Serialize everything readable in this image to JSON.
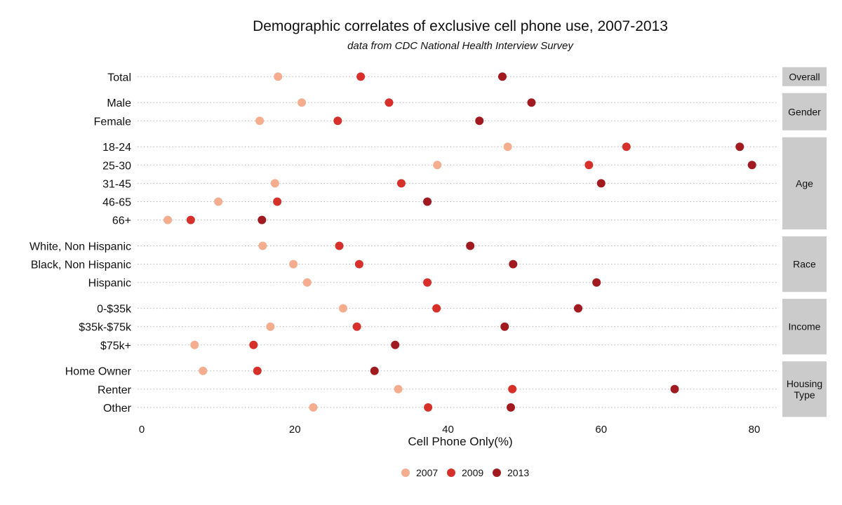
{
  "chart_data": {
    "type": "scatter",
    "title": "Demographic correlates of exclusive cell phone use, 2007-2013",
    "subtitle": "data from CDC National Health Interview Survey",
    "xlabel": "Cell Phone Only(%)",
    "xlim": [
      0,
      80
    ],
    "xticks": [
      0,
      20,
      40,
      60,
      80
    ],
    "grid": true,
    "legend_position": "bottom",
    "series": [
      {
        "name": "2007",
        "color": "#f4ad8f"
      },
      {
        "name": "2009",
        "color": "#d7302b"
      },
      {
        "name": "2013",
        "color": "#a11a20"
      }
    ],
    "groups": [
      {
        "label": "Overall",
        "rows": [
          {
            "label": "Total",
            "values": [
              17.8,
              28.6,
              47.1
            ]
          }
        ]
      },
      {
        "label": "Gender",
        "rows": [
          {
            "label": "Male",
            "values": [
              20.9,
              32.3,
              50.9
            ]
          },
          {
            "label": "Female",
            "values": [
              15.4,
              25.6,
              44.1
            ]
          }
        ]
      },
      {
        "label": "Age",
        "rows": [
          {
            "label": "18-24",
            "values": [
              47.8,
              63.3,
              78.1
            ]
          },
          {
            "label": "25-30",
            "values": [
              38.6,
              58.4,
              79.7
            ]
          },
          {
            "label": "31-45",
            "values": [
              17.4,
              33.9,
              60.0
            ]
          },
          {
            "label": "46-65",
            "values": [
              10.0,
              17.7,
              37.3
            ]
          },
          {
            "label": "66+",
            "values": [
              3.4,
              6.4,
              15.7
            ]
          }
        ]
      },
      {
        "label": "Race",
        "rows": [
          {
            "label": "White, Non Hispanic",
            "values": [
              15.8,
              25.8,
              42.9
            ]
          },
          {
            "label": "Black, Non Hispanic",
            "values": [
              19.8,
              28.4,
              48.5
            ]
          },
          {
            "label": "Hispanic",
            "values": [
              21.6,
              37.3,
              59.4
            ]
          }
        ]
      },
      {
        "label": "Income",
        "rows": [
          {
            "label": "0-$35k",
            "values": [
              26.3,
              38.5,
              57.0
            ]
          },
          {
            "label": "$35k-$75k",
            "values": [
              16.8,
              28.1,
              47.4
            ]
          },
          {
            "label": "$75k+",
            "values": [
              6.9,
              14.6,
              33.1
            ]
          }
        ]
      },
      {
        "label": "Housing Type",
        "rows": [
          {
            "label": "Home Owner",
            "values": [
              8.0,
              15.1,
              30.4
            ]
          },
          {
            "label": "Renter",
            "values": [
              33.5,
              48.4,
              69.6
            ]
          },
          {
            "label": "Other",
            "values": [
              22.4,
              37.4,
              48.2
            ]
          }
        ]
      }
    ]
  }
}
